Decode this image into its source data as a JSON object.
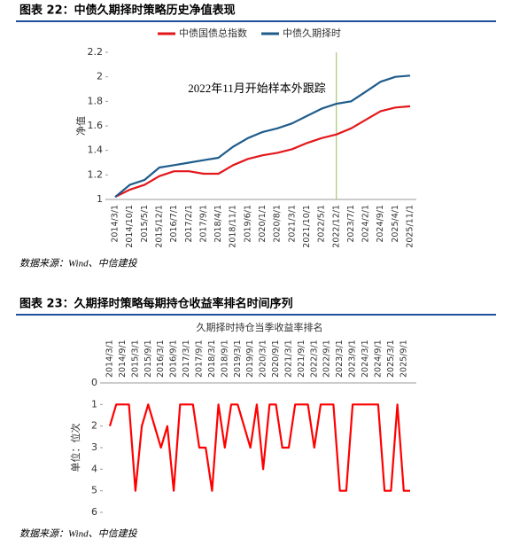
{
  "chart_data": [
    {
      "type": "line",
      "caption": "图表 22：中债久期择时策略历史净值表现",
      "ylabel": "净值",
      "annotation": "2022年11月开始样本外跟踪",
      "marker_category": 15,
      "marker_color": "#9bbb59",
      "categories": [
        "2014/3/1",
        "2014/10/1",
        "2015/5/1",
        "2015/12/1",
        "2016/7/1",
        "2017/2/1",
        "2017/9/1",
        "2018/4/1",
        "2018/11/1",
        "2019/6/1",
        "2020/1/1",
        "2020/8/1",
        "2021/3/1",
        "2021/10/1",
        "2022/5/1",
        "2022/12/1",
        "2023/7/1",
        "2024/2/1",
        "2024/9/1",
        "2025/4/1",
        "2025/11/1"
      ],
      "series": [
        {
          "name": "中债国债总指数",
          "color": "#e3171b",
          "values": [
            1.02,
            1.08,
            1.12,
            1.19,
            1.23,
            1.23,
            1.21,
            1.21,
            1.28,
            1.33,
            1.36,
            1.38,
            1.41,
            1.46,
            1.5,
            1.53,
            1.58,
            1.65,
            1.72,
            1.75,
            1.76
          ]
        },
        {
          "name": "中债久期择时",
          "color": "#1f5c8b",
          "values": [
            1.02,
            1.12,
            1.16,
            1.26,
            1.28,
            1.3,
            1.32,
            1.34,
            1.43,
            1.5,
            1.55,
            1.58,
            1.62,
            1.68,
            1.74,
            1.78,
            1.8,
            1.88,
            1.96,
            2.0,
            2.01
          ]
        }
      ],
      "ylim": [
        1,
        2.2
      ],
      "yticks": [
        1,
        1.2,
        1.4,
        1.6,
        1.8,
        2,
        2.2
      ],
      "source": "数据来源：Wind、中信建投"
    },
    {
      "type": "line",
      "caption": "图表 23：久期择时策略每期持仓收益率排名时间序列",
      "title": "久期择时持仓当季收益率排名",
      "ylabel": "单位：位次",
      "y_inverted": true,
      "categories": [
        "2014/3/1",
        null,
        "2014/9/1",
        null,
        "2015/3/1",
        null,
        "2015/9/1",
        null,
        "2016/3/1",
        null,
        "2016/9/1",
        null,
        "2017/3/1",
        null,
        "2017/9/1",
        null,
        "2018/3/1",
        null,
        "2018/9/1",
        null,
        "2019/3/1",
        null,
        "2019/9/1",
        null,
        "2020/3/1",
        null,
        "2020/9/1",
        null,
        "2021/3/1",
        null,
        "2021/9/1",
        null,
        "2022/3/1",
        null,
        "2022/9/1",
        null,
        "2023/3/1",
        null,
        "2023/9/1",
        null,
        "2024/3/1",
        null,
        "2024/9/1",
        null,
        "2025/3/1",
        null,
        "2025/9/1",
        null
      ],
      "series": [
        {
          "color": "#ff0000",
          "values": [
            2,
            1,
            1,
            1,
            5,
            2,
            1,
            2,
            3,
            2,
            5,
            1,
            1,
            1,
            3,
            3,
            5,
            1,
            3,
            1,
            1,
            2,
            3,
            1,
            4,
            1,
            1,
            3,
            3,
            1,
            1,
            1,
            3,
            1,
            1,
            1,
            5,
            5,
            1,
            1,
            1,
            1,
            1,
            5,
            5,
            1,
            5,
            5
          ]
        }
      ],
      "ylim": [
        0,
        6
      ],
      "yticks": [
        0,
        1,
        2,
        3,
        4,
        5,
        6
      ],
      "source": "数据来源：Wind、中信建投"
    }
  ]
}
